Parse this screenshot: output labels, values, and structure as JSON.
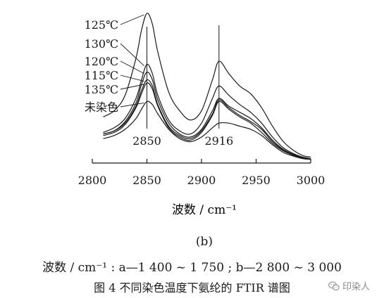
{
  "chart_data": {
    "type": "line",
    "panel_label": "(b)",
    "xlabel": "波数 / cm⁻¹",
    "ylabel": "",
    "xlim": [
      2800,
      3000
    ],
    "xticks": [
      2800,
      2850,
      2900,
      2950,
      3000
    ],
    "grid": false,
    "peak_annotations": [
      {
        "x": 2850,
        "label": "2850"
      },
      {
        "x": 2916,
        "label": "2916"
      }
    ],
    "series_order_top_to_bottom": [
      "125℃",
      "130℃",
      "120℃",
      "115℃",
      "135℃",
      "未染色"
    ],
    "x": [
      2810,
      2820,
      2830,
      2840,
      2845,
      2850,
      2855,
      2860,
      2870,
      2880,
      2890,
      2900,
      2910,
      2916,
      2925,
      2935,
      2945,
      2955,
      2965,
      2975,
      2985,
      2993,
      3000
    ],
    "series": [
      {
        "name": "125℃",
        "values": [
          0.28,
          0.32,
          0.42,
          0.66,
          0.84,
          0.95,
          0.88,
          0.7,
          0.44,
          0.32,
          0.26,
          0.32,
          0.52,
          0.64,
          0.56,
          0.48,
          0.43,
          0.34,
          0.22,
          0.12,
          0.06,
          0.03,
          0.02
        ]
      },
      {
        "name": "130℃",
        "values": [
          0.18,
          0.21,
          0.27,
          0.4,
          0.52,
          0.62,
          0.56,
          0.42,
          0.26,
          0.19,
          0.17,
          0.24,
          0.4,
          0.48,
          0.42,
          0.36,
          0.31,
          0.24,
          0.15,
          0.08,
          0.04,
          0.02,
          0.01
        ]
      },
      {
        "name": "120℃",
        "values": [
          0.17,
          0.19,
          0.25,
          0.37,
          0.49,
          0.57,
          0.52,
          0.39,
          0.24,
          0.17,
          0.15,
          0.2,
          0.32,
          0.4,
          0.35,
          0.31,
          0.27,
          0.21,
          0.13,
          0.07,
          0.035,
          0.015,
          0.01
        ]
      },
      {
        "name": "115℃",
        "values": [
          0.17,
          0.19,
          0.24,
          0.35,
          0.45,
          0.52,
          0.48,
          0.36,
          0.22,
          0.16,
          0.14,
          0.19,
          0.3,
          0.39,
          0.34,
          0.29,
          0.25,
          0.2,
          0.12,
          0.065,
          0.03,
          0.015,
          0.01
        ]
      },
      {
        "name": "135℃",
        "values": [
          0.16,
          0.18,
          0.23,
          0.34,
          0.43,
          0.5,
          0.46,
          0.35,
          0.21,
          0.15,
          0.13,
          0.18,
          0.29,
          0.38,
          0.33,
          0.28,
          0.24,
          0.18,
          0.11,
          0.06,
          0.03,
          0.012,
          0.01
        ]
      },
      {
        "name": "未染色",
        "values": [
          0.14,
          0.16,
          0.2,
          0.27,
          0.33,
          0.38,
          0.36,
          0.3,
          0.2,
          0.14,
          0.12,
          0.15,
          0.21,
          0.24,
          0.24,
          0.22,
          0.2,
          0.16,
          0.1,
          0.05,
          0.025,
          0.01,
          0.005
        ]
      }
    ]
  },
  "captions": {
    "axis_note": "波数 / cm⁻¹ : a—1 400 ~ 1 750 ; b—2 800 ~ 3 000",
    "figure_title": "图 4   不同染色温度下氨纶的 FTIR 谱图"
  },
  "watermark": {
    "text": "印染人",
    "icon": "wechat-icon"
  },
  "colors": {
    "line": "#1a1a1a"
  }
}
